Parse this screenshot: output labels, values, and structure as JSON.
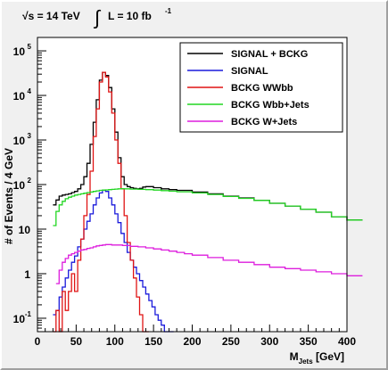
{
  "header": {
    "energy_label": "√s = 14 TeV",
    "integral_sign": "∫",
    "lumi_label": "L = 10 fb",
    "lumi_exp": "-1"
  },
  "colors": {
    "signal_plus_bckg": "#000000",
    "signal": "#1a1adb",
    "bckg_wwbb": "#e01414",
    "bckg_wbb_jets": "#22d622",
    "bckg_w_jets": "#dd1ddd"
  },
  "chart_data": {
    "type": "line",
    "title": "",
    "xlabel_main": "M",
    "xlabel_sub": "Jets",
    "xlabel_unit": " [GeV]",
    "ylabel": "# of Events / 4 GeV",
    "xlim": [
      0,
      400
    ],
    "ylim": [
      0.05,
      200000
    ],
    "yscale": "log",
    "grid": false,
    "legend_position": "top-right",
    "x_ticks": [
      0,
      50,
      100,
      150,
      200,
      250,
      300,
      350,
      400
    ],
    "y_ticks": [
      {
        "value": 0.1,
        "base": "10",
        "exp": "-1"
      },
      {
        "value": 1,
        "base": "1",
        "exp": ""
      },
      {
        "value": 10,
        "base": "10",
        "exp": ""
      },
      {
        "value": 100,
        "base": "10",
        "exp": "2"
      },
      {
        "value": 1000,
        "base": "10",
        "exp": "3"
      },
      {
        "value": 10000,
        "base": "10",
        "exp": "4"
      },
      {
        "value": 100000,
        "base": "10",
        "exp": "5"
      }
    ],
    "series": [
      {
        "name": "SIGNAL + BCKG",
        "color_key": "signal_plus_bckg",
        "x": [
          20,
          24,
          28,
          32,
          36,
          40,
          44,
          48,
          52,
          56,
          60,
          64,
          68,
          72,
          76,
          80,
          84,
          88,
          92,
          96,
          100,
          104,
          108,
          112,
          116,
          120,
          124,
          128,
          132,
          136,
          140,
          150,
          160,
          170,
          180,
          200,
          220,
          240,
          260,
          280,
          300,
          320,
          340,
          360,
          380,
          400
        ],
        "values": [
          35,
          45,
          55,
          58,
          60,
          62,
          66,
          70,
          80,
          100,
          150,
          300,
          800,
          2500,
          8000,
          22000,
          33000,
          28000,
          15000,
          5000,
          1500,
          400,
          150,
          100,
          90,
          85,
          82,
          80,
          82,
          88,
          90,
          85,
          80,
          77,
          74,
          68,
          62,
          55,
          50,
          44,
          38,
          33,
          28,
          24,
          19,
          16
        ]
      },
      {
        "name": "SIGNAL",
        "color_key": "signal",
        "x": [
          20,
          24,
          28,
          32,
          36,
          40,
          44,
          48,
          52,
          56,
          60,
          64,
          68,
          72,
          76,
          80,
          84,
          88,
          92,
          96,
          100,
          104,
          108,
          112,
          116,
          120,
          124,
          128,
          132,
          136,
          140,
          144,
          148,
          152,
          156,
          160,
          164,
          168,
          172
        ],
        "values": [
          0.12,
          0.15,
          0.3,
          0.5,
          0.8,
          1.2,
          1.8,
          2.5,
          4,
          6,
          10,
          15,
          22,
          35,
          50,
          65,
          75,
          70,
          50,
          35,
          22,
          14,
          8,
          5,
          3,
          2,
          1.4,
          1,
          0.7,
          0.5,
          0.35,
          0.25,
          0.18,
          0.12,
          0.09,
          0.07,
          0.05,
          0.05,
          0.05
        ]
      },
      {
        "name": "BCKG WWbb",
        "color_key": "bckg_wwbb",
        "x": [
          20,
          24,
          28,
          32,
          36,
          40,
          44,
          48,
          52,
          56,
          60,
          64,
          68,
          72,
          76,
          80,
          84,
          88,
          92,
          96,
          100,
          104,
          108,
          112,
          116,
          120,
          124,
          128,
          132,
          136,
          140
        ],
        "values": [
          0.05,
          0.15,
          0.05,
          0.4,
          0.15,
          0.4,
          1,
          0.4,
          2,
          6,
          20,
          60,
          200,
          1200,
          5000,
          20000,
          33000,
          26000,
          12000,
          4000,
          1000,
          300,
          80,
          20,
          5,
          2,
          0.8,
          0.3,
          0.12,
          0.05,
          0.05
        ]
      },
      {
        "name": "BCKG Wbb+Jets",
        "color_key": "bckg_wbb_jets",
        "x": [
          20,
          24,
          28,
          32,
          36,
          40,
          44,
          48,
          52,
          56,
          60,
          64,
          68,
          72,
          76,
          80,
          84,
          88,
          92,
          96,
          100,
          104,
          108,
          112,
          116,
          120,
          130,
          140,
          150,
          160,
          170,
          180,
          200,
          220,
          240,
          260,
          280,
          300,
          320,
          340,
          360,
          380,
          400
        ],
        "values": [
          12,
          25,
          35,
          42,
          48,
          52,
          55,
          58,
          60,
          62,
          64,
          66,
          68,
          70,
          72,
          74,
          75,
          76,
          77,
          78,
          79,
          80,
          81,
          80,
          80,
          79,
          78,
          77,
          75,
          73,
          71,
          69,
          65,
          60,
          54,
          49,
          44,
          38,
          33,
          28,
          24,
          19,
          16
        ]
      },
      {
        "name": "BCKG W+Jets",
        "color_key": "bckg_w_jets",
        "x": [
          24,
          28,
          32,
          36,
          40,
          44,
          48,
          52,
          56,
          60,
          64,
          68,
          72,
          76,
          80,
          84,
          88,
          92,
          96,
          100,
          110,
          120,
          130,
          140,
          150,
          160,
          170,
          180,
          190,
          200,
          220,
          240,
          260,
          280,
          300,
          320,
          340,
          360,
          380,
          400
        ],
        "values": [
          0.6,
          1.2,
          1.8,
          2.2,
          2.6,
          2.8,
          3.0,
          3.2,
          3.4,
          3.5,
          3.7,
          3.8,
          4.0,
          4.2,
          4.3,
          4.4,
          4.5,
          4.5,
          4.4,
          4.4,
          4.3,
          4.1,
          4.0,
          3.8,
          3.6,
          3.4,
          3.2,
          3.0,
          2.8,
          2.6,
          2.3,
          2.0,
          1.8,
          1.6,
          1.4,
          1.3,
          1.2,
          1.1,
          1.0,
          0.9
        ]
      }
    ]
  }
}
